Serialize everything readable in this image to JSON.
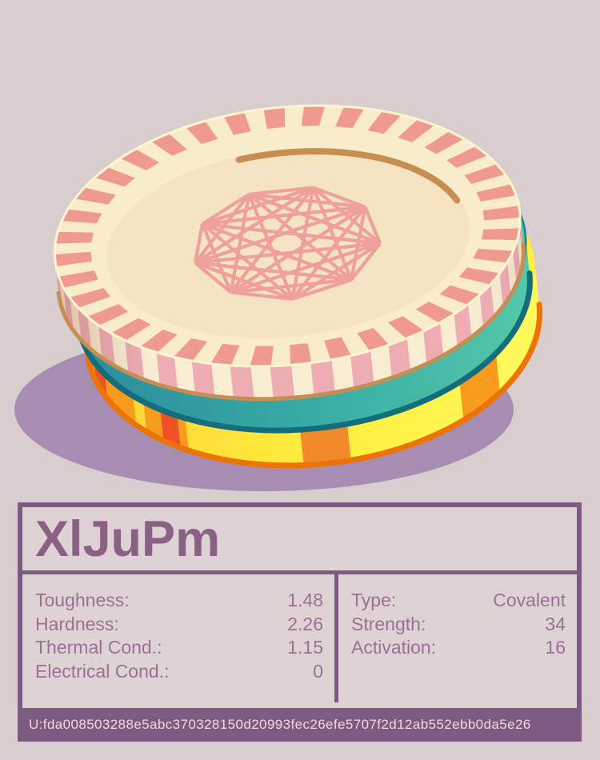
{
  "theme": {
    "background": "#dacdce",
    "card_border": "#7d5a80",
    "card_bg": "#ded2d4",
    "text_color": "#9b7095",
    "title_color": "#8a6185",
    "footer_text": "#ecdadf"
  },
  "card": {
    "title": "XlJuPm",
    "left_stats": [
      {
        "label": "Toughness:",
        "value": "1.48"
      },
      {
        "label": "Hardness:",
        "value": "2.26"
      },
      {
        "label": "Thermal Cond.:",
        "value": "1.15"
      },
      {
        "label": "Electrical Cond.:",
        "value": "0"
      }
    ],
    "right_stats": [
      {
        "label": "Type:",
        "value": "Covalent"
      },
      {
        "label": "Strength:",
        "value": "34"
      },
      {
        "label": "Activation:",
        "value": "16"
      }
    ],
    "footer_hash": "U:fda008503288e5abc370328150d20993fec26efe5707f2d12ab552ebb0da5e26"
  },
  "illustration": {
    "shadow": "#a78db1",
    "tick_count": 36,
    "engraving_vertices": 9,
    "top": {
      "face": "#f8ecca",
      "face_inner": "#f4e4c1",
      "stripe": "#f0998f",
      "side": "#f8edd3",
      "side_stripe": "#eeacb3",
      "rim": "#c78e53",
      "edge": "#fdf5d2",
      "engraving": "#f0a09c"
    },
    "middle": {
      "side_left": "#2a8d9e",
      "side_mid": "#38aca4",
      "side_right": "#54c8a9",
      "top": "#4fc6b2",
      "outline": "#1e7f8e",
      "rim": "#156d7c"
    },
    "bottom": {
      "side_left": "#fcd435",
      "side_mid": "#ffee3d",
      "side_right": "#fff95e",
      "top": "#ffee3f",
      "rim": "#ee7306",
      "patch": "#f79b1d",
      "patch2": "#f28a2a",
      "accent": "#ef5026",
      "patches": [
        [
          145,
          181,
          "patch"
        ],
        [
          159,
          167,
          "accent"
        ],
        [
          127,
          141,
          "patch"
        ],
        [
          129.5,
          135,
          "accent"
        ],
        [
          84,
          96,
          "patch2"
        ],
        [
          38,
          52,
          "patch"
        ]
      ]
    }
  }
}
